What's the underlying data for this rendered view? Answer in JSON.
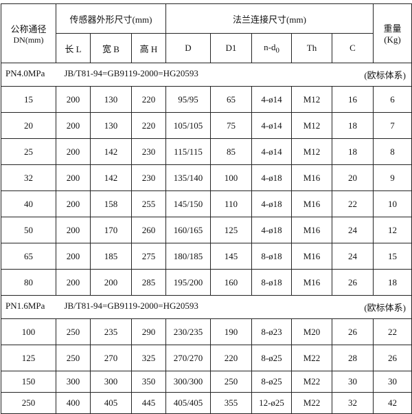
{
  "header": {
    "dn": "公称通径",
    "dn_unit": "DN(mm)",
    "sensor": "传感器外形尺寸(mm)",
    "flange": "法兰连接尺寸(mm)",
    "weight": "重量",
    "weight_unit": "(Kg)",
    "sub": [
      "长 L",
      "宽 B",
      "高 H",
      "D",
      "D1",
      "n-d",
      "Th",
      "C"
    ],
    "sub_nd_subscript": "0"
  },
  "sections": [
    {
      "pressure": "PN4.0MPa",
      "standard": "JB/T81-94=GB9119-2000=HG20593",
      "system": "(欧标体系)",
      "rows": [
        [
          "15",
          "200",
          "130",
          "220",
          "95/95",
          "65",
          "4-ø14",
          "M12",
          "16",
          "6"
        ],
        [
          "20",
          "200",
          "130",
          "220",
          "105/105",
          "75",
          "4-ø14",
          "M12",
          "18",
          "7"
        ],
        [
          "25",
          "200",
          "142",
          "230",
          "115/115",
          "85",
          "4-ø14",
          "M12",
          "18",
          "8"
        ],
        [
          "32",
          "200",
          "142",
          "230",
          "135/140",
          "100",
          "4-ø18",
          "M16",
          "20",
          "9"
        ],
        [
          "40",
          "200",
          "158",
          "255",
          "145/150",
          "110",
          "4-ø18",
          "M16",
          "22",
          "10"
        ],
        [
          "50",
          "200",
          "170",
          "260",
          "160/165",
          "125",
          "4-ø18",
          "M16",
          "24",
          "12"
        ],
        [
          "65",
          "200",
          "185",
          "275",
          "180/185",
          "145",
          "8-ø18",
          "M16",
          "24",
          "15"
        ],
        [
          "80",
          "200",
          "200",
          "285",
          "195/200",
          "160",
          "8-ø18",
          "M16",
          "26",
          "18"
        ]
      ]
    },
    {
      "pressure": "PN1.6MPa",
      "standard": "JB/T81-94=GB9119-2000=HG20593",
      "system": "(欧标体系)",
      "rows": [
        [
          "100",
          "250",
          "235",
          "290",
          "230/235",
          "190",
          "8-ø23",
          "M20",
          "26",
          "22"
        ],
        [
          "125",
          "250",
          "270",
          "325",
          "270/270",
          "220",
          "8-ø25",
          "M22",
          "28",
          "26"
        ],
        [
          "150",
          "300",
          "300",
          "350",
          "300/300",
          "250",
          "8-ø25",
          "M22",
          "30",
          "30"
        ],
        [
          "250",
          "400",
          "405",
          "445",
          "405/405",
          "355",
          "12-ø25",
          "M22",
          "32",
          "42"
        ]
      ]
    }
  ]
}
